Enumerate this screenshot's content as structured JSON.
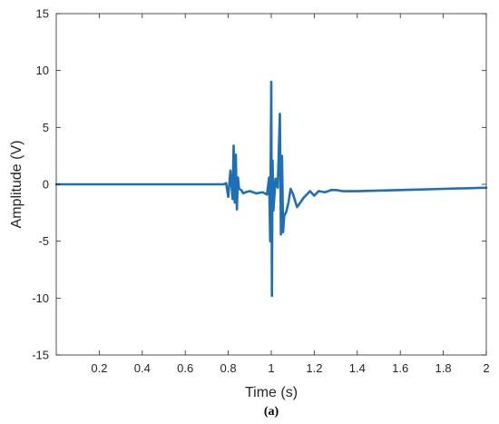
{
  "chart_data": {
    "type": "line",
    "xlabel": "Time (s)",
    "ylabel": "Amplitude (V)",
    "xlim": [
      0,
      2
    ],
    "ylim": [
      -15,
      15
    ],
    "x_ticks": [
      0.2,
      0.4,
      0.6,
      0.8,
      1,
      1.2,
      1.4,
      1.6,
      1.8,
      2
    ],
    "x_tick_labels": [
      "0.2",
      "0.4",
      "0.6",
      "0.8",
      "1",
      "1.2",
      "1.4",
      "1.6",
      "1.8",
      "2"
    ],
    "y_ticks": [
      15,
      10,
      5,
      0,
      -5,
      -10,
      -15
    ],
    "y_tick_labels": [
      "15",
      "10",
      "5",
      "0",
      "-5",
      "-10",
      "-15"
    ],
    "grid": false,
    "series": [
      {
        "color": "#1f6fb4",
        "x": [
          0,
          0.78,
          0.79,
          0.8,
          0.81,
          0.82,
          0.825,
          0.83,
          0.835,
          0.84,
          0.845,
          0.85,
          0.86,
          0.87,
          0.88,
          0.9,
          0.93,
          0.96,
          0.98,
          0.99,
          0.995,
          1.0,
          1.003,
          1.006,
          1.01,
          1.02,
          1.03,
          1.04,
          1.045,
          1.05,
          1.055,
          1.06,
          1.07,
          1.08,
          1.09,
          1.1,
          1.12,
          1.15,
          1.18,
          1.2,
          1.22,
          1.25,
          1.28,
          1.3,
          1.33,
          1.36,
          1.4,
          1.5,
          1.6,
          1.7,
          1.8,
          1.9,
          2.0
        ],
        "y": [
          0,
          0,
          0.1,
          -1.1,
          1.2,
          -1.3,
          3.4,
          -1.6,
          2.6,
          -2.2,
          0.6,
          -0.4,
          -0.5,
          -0.8,
          -0.7,
          -0.6,
          -0.8,
          -0.7,
          -0.9,
          0.6,
          -5.0,
          9.0,
          -9.8,
          2.1,
          -2.3,
          0.5,
          -0.3,
          6.2,
          -4.4,
          2.5,
          -4.2,
          -2.8,
          -2.4,
          -1.6,
          -0.4,
          -0.8,
          -2.0,
          -1.2,
          -0.6,
          -1.0,
          -0.6,
          -0.7,
          -0.5,
          -0.5,
          -0.6,
          -0.6,
          -0.6,
          -0.55,
          -0.5,
          -0.45,
          -0.4,
          -0.35,
          -0.3
        ]
      }
    ]
  },
  "caption": "(a)"
}
